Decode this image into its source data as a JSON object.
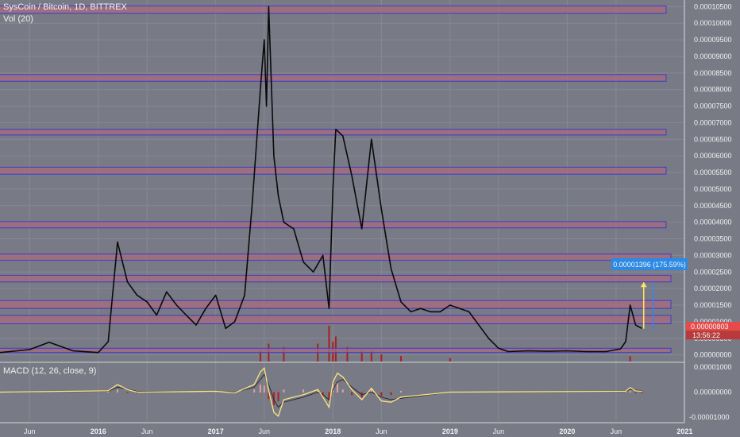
{
  "header": {
    "title": "SysCoin / Bitcoin, 1D, BITTREX",
    "volume_label": "Vol (20)",
    "macd_label": "MACD (12, 26, close, 9)"
  },
  "colors": {
    "background": "#787b86",
    "zone_fill": "#a86a7e",
    "zone_stroke": "#3a3cc8",
    "price_line": "#0a0a0a",
    "volume_red": "#a82020",
    "arrow_yellow": "#ffe566",
    "arrow_blue": "#3b82f6",
    "measure_badge": "#2a8ae6",
    "price_badge": "#e84a4a",
    "macd_line": "#ffe680",
    "signal_line": "#2c2c2c"
  },
  "price_axis": {
    "ticks": [
      "0.00010500",
      "0.00010000",
      "0.00009500",
      "0.00009000",
      "0.00008500",
      "0.00008000",
      "0.00007500",
      "0.00007000",
      "0.00006500",
      "0.00006000",
      "0.00005500",
      "0.00005000",
      "0.00004500",
      "0.00004000",
      "0.00003500",
      "0.00003000",
      "0.00002500",
      "0.00002000",
      "0.00001500",
      "0.00001000",
      "0.00000500",
      "0.00000000"
    ],
    "current_price": "0.00000803",
    "countdown": "13:56:22"
  },
  "measure": {
    "label": "0.00001396 (175.59%)"
  },
  "macd_axis": {
    "ticks": [
      "0.00001000",
      "0.00000000",
      "-0.00001000"
    ]
  },
  "time_axis": {
    "labels": [
      {
        "text": "Jun",
        "bold": false
      },
      {
        "text": "2016",
        "bold": true
      },
      {
        "text": "Jun",
        "bold": false
      },
      {
        "text": "2017",
        "bold": true
      },
      {
        "text": "Jun",
        "bold": false
      },
      {
        "text": "2018",
        "bold": true
      },
      {
        "text": "Jun",
        "bold": false
      },
      {
        "text": "2019",
        "bold": true
      },
      {
        "text": "Jun",
        "bold": false
      },
      {
        "text": "2020",
        "bold": true
      },
      {
        "text": "Jun",
        "bold": false
      },
      {
        "text": "2021",
        "bold": true
      }
    ]
  },
  "chart_data": {
    "type": "line",
    "title": "SysCoin / Bitcoin, 1D, BITTREX",
    "xlabel": "",
    "ylabel": "",
    "x_range": [
      "2015-03-01",
      "2020-12-31"
    ],
    "ylim": [
      -2e-06,
      0.000107
    ],
    "series": [
      {
        "name": "SysCoin / Bitcoin",
        "x": [
          "2015-03-01",
          "2015-06-01",
          "2015-08-01",
          "2015-10-15",
          "2016-01-01",
          "2016-02-01",
          "2016-03-01",
          "2016-04-01",
          "2016-05-01",
          "2016-06-01",
          "2016-07-01",
          "2016-08-01",
          "2016-09-01",
          "2016-10-01",
          "2016-11-01",
          "2016-12-01",
          "2017-01-01",
          "2017-02-01",
          "2017-03-01",
          "2017-04-01",
          "2017-04-25",
          "2017-05-20",
          "2017-06-01",
          "2017-06-08",
          "2017-06-15",
          "2017-07-01",
          "2017-07-15",
          "2017-08-01",
          "2017-09-01",
          "2017-10-01",
          "2017-11-01",
          "2017-12-01",
          "2017-12-20",
          "2018-01-01",
          "2018-01-10",
          "2018-02-01",
          "2018-03-01",
          "2018-04-01",
          "2018-05-01",
          "2018-06-01",
          "2018-07-01",
          "2018-08-01",
          "2018-09-01",
          "2018-10-01",
          "2018-11-01",
          "2018-12-01",
          "2019-01-01",
          "2019-03-01",
          "2019-05-01",
          "2019-06-01",
          "2019-07-01",
          "2019-09-01",
          "2019-11-01",
          "2020-01-01",
          "2020-03-01",
          "2020-05-01",
          "2020-06-15",
          "2020-07-01",
          "2020-07-15",
          "2020-08-01",
          "2020-08-20"
        ],
        "values": [
          7e-07,
          1.6e-06,
          3.8e-06,
          1.2e-06,
          7e-07,
          4e-06,
          3.4e-05,
          2.2e-05,
          1.8e-05,
          1.6e-05,
          1.2e-05,
          1.9e-05,
          1.5e-05,
          1.2e-05,
          9e-06,
          1.4e-05,
          1.8e-05,
          8e-06,
          1e-05,
          1.8e-05,
          4.6e-05,
          8e-05,
          9.5e-05,
          7.5e-05,
          0.000105,
          6e-05,
          4.8e-05,
          4e-05,
          3.8e-05,
          2.8e-05,
          2.5e-05,
          3e-05,
          1.4e-05,
          5e-05,
          6.8e-05,
          6.6e-05,
          5.4e-05,
          3.8e-05,
          6.5e-05,
          4.4e-05,
          2.6e-05,
          1.6e-05,
          1.3e-05,
          1.4e-05,
          1.3e-05,
          1.3e-05,
          1.5e-05,
          1.3e-05,
          5e-06,
          2e-06,
          1e-06,
          1.2e-06,
          1.1e-06,
          1.2e-06,
          1e-06,
          1e-06,
          1.8e-06,
          4e-06,
          1.5e-05,
          9e-06,
          8e-06
        ]
      }
    ],
    "volume": {
      "x": [
        "2017-05-20",
        "2017-06-15",
        "2017-08-01",
        "2017-11-15",
        "2017-12-20",
        "2018-01-01",
        "2018-01-10",
        "2018-02-15",
        "2018-04-01",
        "2018-05-01",
        "2018-06-01",
        "2018-08-01",
        "2019-01-01",
        "2020-07-15"
      ],
      "values": [
        0.3,
        0.5,
        0.4,
        0.5,
        1.0,
        0.55,
        0.7,
        0.4,
        0.3,
        0.3,
        0.2,
        0.15,
        0.1,
        0.15
      ]
    },
    "macd": {
      "x": [
        "2015-03-01",
        "2016-02-01",
        "2016-03-01",
        "2016-04-01",
        "2016-05-01",
        "2017-01-01",
        "2017-03-01",
        "2017-05-01",
        "2017-05-20",
        "2017-06-01",
        "2017-06-15",
        "2017-07-01",
        "2017-07-15",
        "2017-08-01",
        "2017-10-01",
        "2017-11-15",
        "2017-12-01",
        "2017-12-20",
        "2018-01-01",
        "2018-01-15",
        "2018-02-01",
        "2018-03-01",
        "2018-04-01",
        "2018-05-01",
        "2018-06-01",
        "2018-07-01",
        "2018-08-01",
        "2019-01-01",
        "2020-07-01",
        "2020-07-15",
        "2020-08-01",
        "2020-08-20"
      ],
      "macd": [
        0,
        5e-07,
        3e-06,
        1e-06,
        0,
        3e-07,
        -3e-07,
        3e-06,
        8e-06,
        9.5e-06,
        5e-07,
        -8e-06,
        -9.5e-06,
        -3e-06,
        -1e-06,
        1e-06,
        -2e-06,
        -6e-06,
        4e-06,
        7.5e-06,
        6e-06,
        1e-06,
        -3e-06,
        1.5e-06,
        -3.5e-06,
        -4e-06,
        -2e-06,
        0,
        3e-07,
        1.8e-06,
        5e-07,
        3e-07
      ],
      "signal": [
        0,
        3e-07,
        2e-06,
        1.2e-06,
        3e-07,
        2e-07,
        0,
        2e-06,
        5e-06,
        7e-06,
        3e-06,
        -3e-06,
        -6e-06,
        -4e-06,
        -2e-06,
        0,
        -1e-06,
        -3e-06,
        1e-06,
        4e-06,
        5e-06,
        2e-06,
        -1e-06,
        0,
        -2e-06,
        -3e-06,
        -2.5e-06,
        0,
        2e-07,
        1.2e-06,
        8e-07,
        5e-07
      ]
    },
    "zones": [
      [
        7e-07,
        2e-06
      ],
      [
        9.4e-06,
        1.19e-05
      ],
      [
        1.4e-05,
        1.64e-05
      ],
      [
        2.2e-05,
        2.4e-05
      ],
      [
        2.85e-05,
        3.04e-05
      ],
      [
        3.83e-05,
        4.02e-05
      ],
      [
        5.45e-05,
        5.66e-05
      ],
      [
        6.63e-05,
        6.8e-05
      ],
      [
        8.25e-05,
        8.45e-05
      ],
      [
        0.000103,
        0.0001052
      ]
    ],
    "measure_range": [
      7.9e-06,
      2.19e-05
    ],
    "grid": true,
    "legend": "top-left"
  }
}
